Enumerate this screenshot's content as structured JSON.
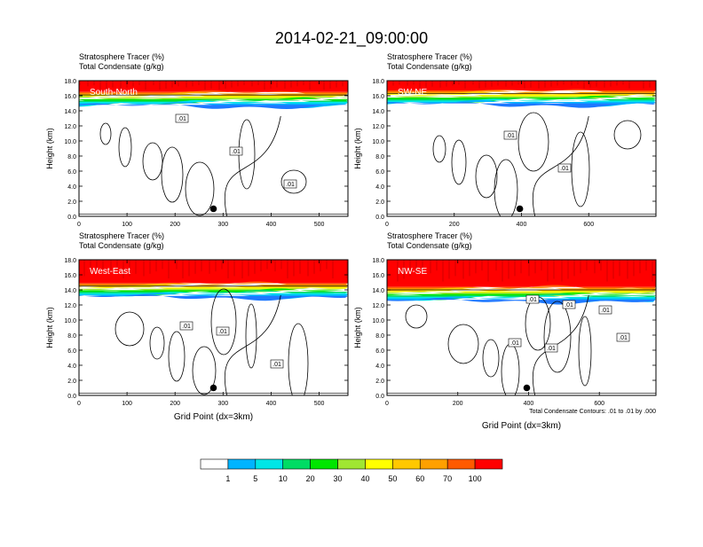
{
  "title": "2014-02-21_09:00:00",
  "colorbar": {
    "levels": [
      "1",
      "5",
      "10",
      "20",
      "30",
      "40",
      "50",
      "60",
      "70",
      "100"
    ],
    "colors": [
      "#ffffff",
      "#1e78ff",
      "#00b4ff",
      "#00e6e6",
      "#00dc64",
      "#00e600",
      "#a0e632",
      "#ffff00",
      "#ffc800",
      "#ffa000",
      "#ff5a00",
      "#ff0000"
    ]
  },
  "chart_data": [
    {
      "type": "heatmap",
      "label": "South-North",
      "left_title_1": "Stratosphere Tracer   (%)",
      "left_title_2": "Total Condensate   (g/kg)",
      "ylabel": "Height (km)",
      "xlabel": "",
      "xlim": [
        0,
        560
      ],
      "ylim": [
        0,
        18
      ],
      "xticks": [
        0,
        100,
        200,
        300,
        400,
        500
      ],
      "yticks": [
        "0.0",
        "2.0",
        "4.0",
        "6.0",
        "8.0",
        "10.0",
        "12.0",
        "14.0",
        "16.0",
        "18.0"
      ],
      "contour_labels": [
        ".01",
        ".01",
        ".01"
      ],
      "marker_x": 280,
      "marker_y": 1.0,
      "tracer_base_km": 14.6,
      "note": ""
    },
    {
      "type": "heatmap",
      "label": "SW-NE",
      "left_title_1": "Stratosphere Tracer   (%)",
      "left_title_2": "Total Condensate   (g/kg)",
      "ylabel": "Height (km)",
      "xlabel": "",
      "xlim": [
        0,
        800
      ],
      "ylim": [
        0,
        18
      ],
      "xticks": [
        0,
        200,
        400,
        600
      ],
      "yticks": [
        "0.0",
        "2.0",
        "4.0",
        "6.0",
        "8.0",
        "10.0",
        "12.0",
        "14.0",
        "16.0",
        "18.0"
      ],
      "contour_labels": [
        ".01",
        ".01"
      ],
      "marker_x": 395,
      "marker_y": 1.0,
      "tracer_base_km": 14.8,
      "note": ""
    },
    {
      "type": "heatmap",
      "label": "West-East",
      "left_title_1": "Stratosphere Tracer   (%)",
      "left_title_2": "Total Condensate   (g/kg)",
      "ylabel": "Height (km)",
      "xlabel": "Grid Point (dx=3km)",
      "xlim": [
        0,
        560
      ],
      "ylim": [
        0,
        18
      ],
      "xticks": [
        0,
        100,
        200,
        300,
        400,
        500
      ],
      "yticks": [
        "0.0",
        "2.0",
        "4.0",
        "6.0",
        "8.0",
        "10.0",
        "12.0",
        "14.0",
        "16.0",
        "18.0"
      ],
      "contour_labels": [
        ".01",
        ".01",
        ".01"
      ],
      "marker_x": 280,
      "marker_y": 1.0,
      "tracer_base_km": 13.0,
      "note": ""
    },
    {
      "type": "heatmap",
      "label": "NW-SE",
      "left_title_1": "Stratosphere Tracer   (%)",
      "left_title_2": "Total Condensate   (g/kg)",
      "ylabel": "Height (km)",
      "xlabel": "Grid Point (dx=3km)",
      "xlim": [
        0,
        760
      ],
      "ylim": [
        0,
        18
      ],
      "xticks": [
        0,
        200,
        400,
        600
      ],
      "yticks": [
        "0.0",
        "2.0",
        "4.0",
        "6.0",
        "8.0",
        "10.0",
        "12.0",
        "14.0",
        "16.0",
        "18.0"
      ],
      "contour_labels": [
        ".01",
        ".01",
        ".01",
        ".01",
        ".01",
        ".01"
      ],
      "marker_x": 395,
      "marker_y": 1.0,
      "tracer_base_km": 12.5,
      "note": "Total Condensate Contours: .01 to .01 by .000"
    }
  ]
}
